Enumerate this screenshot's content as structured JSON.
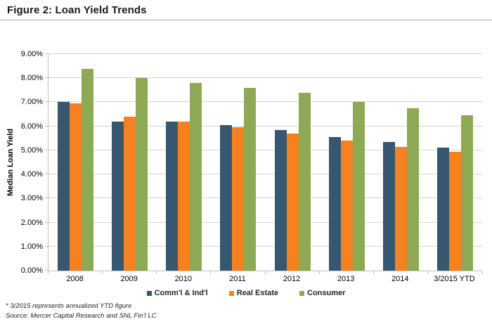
{
  "header": {
    "title": "Figure 2: Loan Yield Trends"
  },
  "chart_data": {
    "type": "bar",
    "title": "Figure 2: Loan Yield Trends",
    "categories": [
      "2008",
      "2009",
      "2010",
      "2011",
      "2012",
      "2013",
      "2014",
      "3/2015 YTD"
    ],
    "series": [
      {
        "name": "Comm'l & Ind'l",
        "color": "#36576F",
        "values": [
          7.0,
          6.2,
          6.2,
          6.05,
          5.85,
          5.55,
          5.35,
          5.1
        ]
      },
      {
        "name": "Real Estate",
        "color": "#F6821F",
        "values": [
          6.95,
          6.4,
          6.2,
          5.95,
          5.7,
          5.4,
          5.15,
          4.95
        ]
      },
      {
        "name": "Consumer",
        "color": "#8EA953",
        "values": [
          8.4,
          8.0,
          7.8,
          7.6,
          7.4,
          7.0,
          6.75,
          6.45
        ]
      }
    ],
    "xlabel": "",
    "ylabel": "Median Loan Yield",
    "ylim": [
      0,
      9
    ],
    "ytick_step": 1,
    "yticks": [
      "0.00%",
      "1.00%",
      "2.00%",
      "3.00%",
      "4.00%",
      "5.00%",
      "6.00%",
      "7.00%",
      "8.00%",
      "9.00%"
    ],
    "grid": true,
    "legend_position": "bottom"
  },
  "footnotes": {
    "line1": "* 3/2015 represents annualized YTD figure",
    "line2": "Source: Mercer Capital Research and SNL Fin'l LC"
  },
  "colors": {
    "title_rule": "#a6a6a6",
    "gridline": "#d4d4d4",
    "axis_line": "#bfbfbf"
  }
}
